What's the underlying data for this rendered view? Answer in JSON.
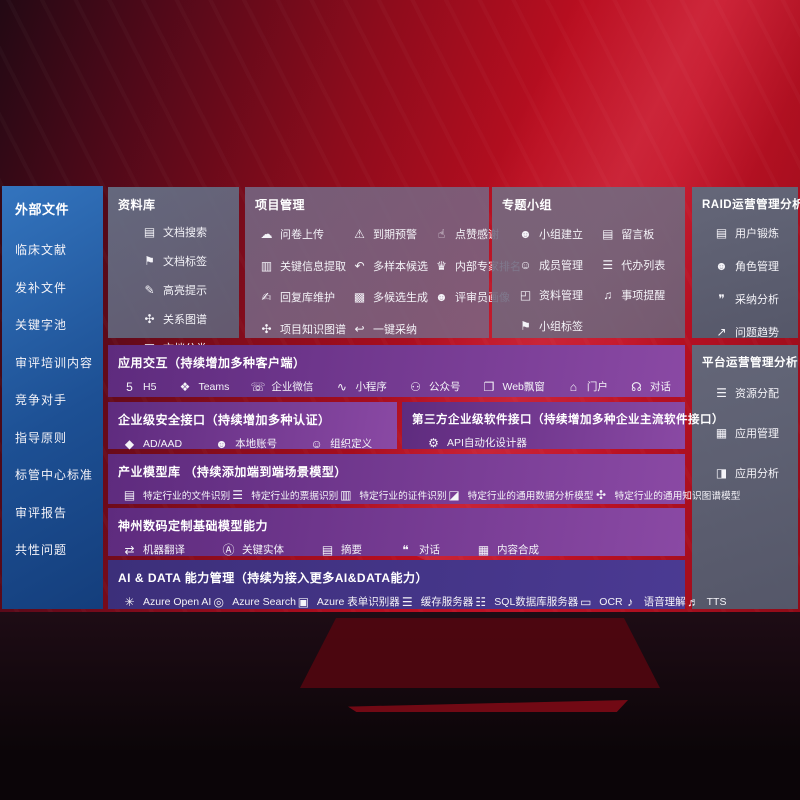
{
  "colors": {
    "bg_red": "#b90e20",
    "sidebar_blue": "#1d5094",
    "panel_gray": "#66708a",
    "purple": "#7c3b94",
    "indigo": "#463585"
  },
  "sidebar": {
    "title": "外部文件",
    "items": [
      {
        "name": "sidebar-item-clinical-literature",
        "label": "临床文献"
      },
      {
        "name": "sidebar-item-supplement-files",
        "label": "发补文件"
      },
      {
        "name": "sidebar-item-keyword-pool",
        "label": "关键字池"
      },
      {
        "name": "sidebar-item-review-training",
        "label": "审评培训内容"
      },
      {
        "name": "sidebar-item-competitors",
        "label": "竞争对手"
      },
      {
        "name": "sidebar-item-guidelines",
        "label": "指导原则"
      },
      {
        "name": "sidebar-item-standards-center",
        "label": "标管中心标准"
      },
      {
        "name": "sidebar-item-review-reports",
        "label": "审评报告"
      },
      {
        "name": "sidebar-item-common-issues",
        "label": "共性问题"
      }
    ]
  },
  "panels": {
    "library": {
      "title": "资料库",
      "items": [
        {
          "icon": "doc-search-icon",
          "glyph": "▤",
          "label": "文档搜索"
        },
        {
          "icon": "doc-tag-icon",
          "glyph": "⚑",
          "label": "文档标签"
        },
        {
          "icon": "highlight-pen-icon",
          "glyph": "✎",
          "label": "高亮提示"
        },
        {
          "icon": "relation-graph-icon",
          "glyph": "✣",
          "label": "关系图谱"
        },
        {
          "icon": "doc-classify-icon",
          "glyph": "▦",
          "label": "文档分类"
        }
      ]
    },
    "project": {
      "title": "项目管理",
      "items": [
        {
          "icon": "cloud-upload-icon",
          "glyph": "☁",
          "label": "问卷上传"
        },
        {
          "icon": "alarm-warning-icon",
          "glyph": "⚠",
          "label": "到期预警"
        },
        {
          "icon": "thumbs-up-icon",
          "glyph": "☝",
          "label": "点赞感谢"
        },
        {
          "icon": "key-info-extract-icon",
          "glyph": "▥",
          "label": "关键信息提取"
        },
        {
          "icon": "multi-sample-icon",
          "glyph": "↶",
          "label": "多样本候选"
        },
        {
          "icon": "expert-ranking-icon",
          "glyph": "♛",
          "label": "内部专家排名"
        },
        {
          "icon": "reply-maintain-icon",
          "glyph": "✍",
          "label": "回复库维护"
        },
        {
          "icon": "multi-candidate-icon",
          "glyph": "▩",
          "label": "多候选生成"
        },
        {
          "icon": "reviewer-portrait-icon",
          "glyph": "☻",
          "label": "评审员画像"
        },
        {
          "icon": "project-knowledge-graph-icon",
          "glyph": "✣",
          "label": "项目知识图谱"
        },
        {
          "icon": "one-click-adopt-icon",
          "glyph": "↩",
          "label": "一键采纳"
        }
      ]
    },
    "topic_group": {
      "title": "专题小组",
      "items": [
        {
          "icon": "group-create-icon",
          "glyph": "☻",
          "label": "小组建立"
        },
        {
          "icon": "bbs-board-icon",
          "glyph": "▤",
          "label": "留言板"
        },
        {
          "icon": "member-manage-icon",
          "glyph": "☺",
          "label": "成员管理"
        },
        {
          "icon": "todo-list-icon",
          "glyph": "☰",
          "label": "代办列表"
        },
        {
          "icon": "material-manage-icon",
          "glyph": "◰",
          "label": "资料管理"
        },
        {
          "icon": "bell-reminder-icon",
          "glyph": "♫",
          "label": "事项提醒"
        },
        {
          "icon": "group-tag-icon",
          "glyph": "⚑",
          "label": "小组标签"
        }
      ]
    },
    "raid": {
      "title": "RAID运营管理分析",
      "items": [
        {
          "icon": "user-card-icon",
          "glyph": "▤",
          "label": "用户锻炼"
        },
        {
          "icon": "role-manage-icon",
          "glyph": "☻",
          "label": "角色管理"
        },
        {
          "icon": "adopt-analysis-icon",
          "glyph": "❞",
          "label": "采纳分析"
        },
        {
          "icon": "issue-trend-icon",
          "glyph": "↗",
          "label": "问题趋势"
        }
      ]
    },
    "platform": {
      "title": "平台运营管理分析",
      "items": [
        {
          "icon": "resource-alloc-icon",
          "glyph": "☰",
          "label": "资源分配"
        },
        {
          "icon": "app-manage-icon",
          "glyph": "▦",
          "label": "应用管理"
        },
        {
          "icon": "app-analysis-icon",
          "glyph": "◨",
          "label": "应用分析"
        }
      ]
    },
    "interaction": {
      "title": "应用交互（持续增加多种客户端）",
      "items": [
        {
          "icon": "html5-icon",
          "glyph": "5",
          "label": "H5"
        },
        {
          "icon": "teams-icon",
          "glyph": "❖",
          "label": "Teams"
        },
        {
          "icon": "wecom-icon",
          "glyph": "☏",
          "label": "企业微信"
        },
        {
          "icon": "miniprogram-icon",
          "glyph": "∿",
          "label": "小程序"
        },
        {
          "icon": "official-account-icon",
          "glyph": "⚇",
          "label": "公众号"
        },
        {
          "icon": "web-popup-icon",
          "glyph": "❐",
          "label": "Web飘窗"
        },
        {
          "icon": "portal-icon",
          "glyph": "⌂",
          "label": "门户"
        },
        {
          "icon": "dialog-icon",
          "glyph": "☊",
          "label": "对话"
        }
      ]
    },
    "security": {
      "title": "企业级安全接口（持续增加多种认证）",
      "items": [
        {
          "icon": "ad-shield-icon",
          "glyph": "◆",
          "label": "AD/AAD"
        },
        {
          "icon": "local-account-icon",
          "glyph": "☻",
          "label": "本地账号"
        },
        {
          "icon": "org-define-icon",
          "glyph": "☺",
          "label": "组织定义"
        }
      ]
    },
    "third_party": {
      "title": "第三方企业级软件接口（持续增加多种企业主流软件接口）",
      "items": [
        {
          "icon": "api-designer-gear-icon",
          "glyph": "⚙",
          "label": "API自动化设计器"
        }
      ]
    },
    "industry_models": {
      "title": "产业模型库 （持续添加端到端场景模型）",
      "items": [
        {
          "icon": "file-recognition-icon",
          "glyph": "▤",
          "label": "特定行业的文件识别"
        },
        {
          "icon": "bill-recognition-icon",
          "glyph": "☰",
          "label": "特定行业的票据识别"
        },
        {
          "icon": "id-recognition-icon",
          "glyph": "▥",
          "label": "特定行业的证件识别"
        },
        {
          "icon": "data-analysis-model-icon",
          "glyph": "◪",
          "label": "特定行业的通用数据分析模型"
        },
        {
          "icon": "knowledge-graph-model-icon",
          "glyph": "✣",
          "label": "特定行业的通用知识图谱模型"
        }
      ]
    },
    "base_models": {
      "title": "神州数码定制基础模型能力",
      "items": [
        {
          "icon": "machine-translate-icon",
          "glyph": "⇄",
          "label": "机器翻译"
        },
        {
          "icon": "key-entity-icon",
          "glyph": "Ⓐ",
          "label": "关键实体"
        },
        {
          "icon": "summary-icon",
          "glyph": "▤",
          "label": "摘要"
        },
        {
          "icon": "chat-icon",
          "glyph": "❝",
          "label": "对话"
        },
        {
          "icon": "content-compose-icon",
          "glyph": "▦",
          "label": "内容合成"
        }
      ]
    },
    "ai_data": {
      "title": "AI & DATA 能力管理（持续为接入更多AI&DATA能力）",
      "items": [
        {
          "icon": "azure-openai-icon",
          "glyph": "✳",
          "label": "Azure Open AI"
        },
        {
          "icon": "azure-search-icon",
          "glyph": "◎",
          "label": "Azure Search"
        },
        {
          "icon": "azure-form-recognizer-icon",
          "glyph": "▣",
          "label": "Azure 表单识别器"
        },
        {
          "icon": "cache-server-icon",
          "glyph": "☰",
          "label": "缓存服务器"
        },
        {
          "icon": "sql-server-icon",
          "glyph": "☷",
          "label": "SQL数据库服务器"
        },
        {
          "icon": "ocr-icon",
          "glyph": "▭",
          "label": "OCR"
        },
        {
          "icon": "speech-understand-icon",
          "glyph": "♪",
          "label": "语音理解"
        },
        {
          "icon": "tts-icon",
          "glyph": "♬",
          "label": "TTS"
        }
      ]
    }
  }
}
